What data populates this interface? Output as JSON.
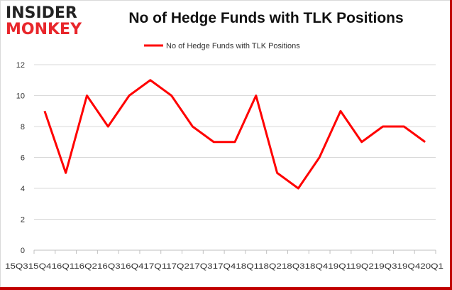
{
  "logo": {
    "line1": "INSIDER",
    "line2": "MONKEY"
  },
  "chart_data": {
    "type": "line",
    "title": "No of Hedge Funds with TLK Positions",
    "xlabel": "",
    "ylabel": "",
    "categories": [
      "2015Q3",
      "2015Q4",
      "2016Q1",
      "2016Q2",
      "2016Q3",
      "2016Q4",
      "2017Q1",
      "2017Q2",
      "2017Q3",
      "2017Q4",
      "2018Q1",
      "2018Q2",
      "2018Q3",
      "2018Q4",
      "2019Q1",
      "2019Q2",
      "2019Q3",
      "2019Q4",
      "2020Q1"
    ],
    "x_tick_text": "15Q315Q416Q116Q216Q316Q417Q117Q217Q317Q418Q118Q218Q318Q419Q119Q219Q319Q420Q1",
    "series": [
      {
        "name": "No of Hedge Funds with TLK Positions",
        "values": [
          9,
          5,
          10,
          8,
          10,
          11,
          10,
          8,
          7,
          7,
          10,
          5,
          4,
          6,
          9,
          7,
          8,
          8,
          7
        ]
      }
    ],
    "ylim": [
      0,
      12
    ],
    "yticks": [
      0,
      2,
      4,
      6,
      8,
      10,
      12
    ],
    "grid": true,
    "legend": "top",
    "color": "#ff0000"
  }
}
